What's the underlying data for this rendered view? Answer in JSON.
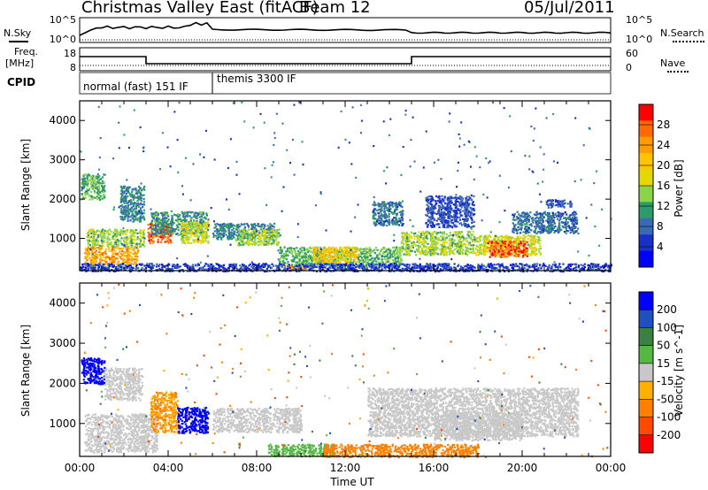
{
  "header": {
    "title": "Christmas Valley East (fitACF)",
    "beam": "Beam 12",
    "date": "05/Jul/2011"
  },
  "side_labels": {
    "nsky": "N.Sky",
    "nsearch": "N.Search",
    "freq": "Freq.",
    "freq_unit": "[MHz]",
    "nave": "Nave",
    "cpid": "CPID"
  },
  "noise_axis": {
    "left_ticks": [
      "10^5",
      "10^0"
    ],
    "right_ticks": [
      "10^5",
      "10^0"
    ]
  },
  "freq_axis": {
    "left_ticks": [
      "18",
      "8"
    ],
    "right_ticks": [
      "60",
      "0"
    ]
  },
  "cpid_segments": [
    {
      "label": "normal (fast) 151 IF",
      "start_hour": 0,
      "end_hour": 6.0
    },
    {
      "label": "themis 3300 IF",
      "start_hour": 6.0,
      "end_hour": 24
    }
  ],
  "colorbars": {
    "power": {
      "label": "Power [dB]",
      "ticks": [
        "28",
        "24",
        "20",
        "16",
        "12",
        "8",
        "4"
      ],
      "colors": [
        "#ff0000",
        "#ff6a00",
        "#ff9c00",
        "#ffc400",
        "#e5d800",
        "#8cd24a",
        "#2f9a6a",
        "#3a6ab4",
        "#1a2fc8",
        "#0000ff"
      ]
    },
    "velocity": {
      "label": "Velocity [m s^-1]",
      "ticks": [
        "200",
        "100",
        "50",
        "15",
        "-15",
        "-50",
        "-100",
        "-200"
      ],
      "colors": [
        "#0000ff",
        "#2050c0",
        "#3a8040",
        "#55b845",
        "#c8c8c8",
        "#ffb000",
        "#ff8000",
        "#ff4a00",
        "#ff0000"
      ]
    }
  },
  "chart_data": [
    {
      "type": "heatmap",
      "title": "Power",
      "ylabel": "Slant Range [km]",
      "xlabel": "",
      "xlim": [
        0,
        24
      ],
      "ylim": [
        180,
        4500
      ],
      "yticks": [
        1000,
        2000,
        3000,
        4000
      ],
      "regions": [
        {
          "t": [
            0.05,
            1.1
          ],
          "r": [
            2000,
            2650
          ],
          "v": 12
        },
        {
          "t": [
            0.3,
            2.9
          ],
          "r": [
            800,
            1250
          ],
          "v": 14
        },
        {
          "t": [
            0.2,
            2.6
          ],
          "r": [
            330,
            800
          ],
          "v": 22
        },
        {
          "t": [
            1.8,
            2.9
          ],
          "r": [
            1450,
            2350
          ],
          "v": 9
        },
        {
          "t": [
            3.05,
            4.1
          ],
          "r": [
            900,
            1400
          ],
          "v": 25
        },
        {
          "t": [
            3.2,
            5.8
          ],
          "r": [
            1100,
            1700
          ],
          "v": 10
        },
        {
          "t": [
            4.5,
            5.8
          ],
          "r": [
            900,
            1450
          ],
          "v": 16
        },
        {
          "t": [
            6.0,
            8.8
          ],
          "r": [
            1000,
            1400
          ],
          "v": 9
        },
        {
          "t": [
            7.0,
            9.0
          ],
          "r": [
            850,
            1250
          ],
          "v": 14
        },
        {
          "t": [
            9.0,
            14.5
          ],
          "r": [
            300,
            800
          ],
          "v": 12
        },
        {
          "t": [
            10.5,
            12.5
          ],
          "r": [
            400,
            800
          ],
          "v": 19
        },
        {
          "t": [
            9.2,
            10.4
          ],
          "r": [
            200,
            330
          ],
          "v": 22
        },
        {
          "t": [
            13.2,
            14.6
          ],
          "r": [
            1350,
            1950
          ],
          "v": 8
        },
        {
          "t": [
            14.5,
            17.8
          ],
          "r": [
            600,
            1200
          ],
          "v": 14
        },
        {
          "t": [
            15.6,
            17.8
          ],
          "r": [
            1300,
            2100
          ],
          "v": 6
        },
        {
          "t": [
            17.8,
            20.8
          ],
          "r": [
            600,
            1100
          ],
          "v": 16
        },
        {
          "t": [
            18.4,
            20.2
          ],
          "r": [
            550,
            950
          ],
          "v": 26
        },
        {
          "t": [
            19.5,
            22.5
          ],
          "r": [
            1150,
            1700
          ],
          "v": 8
        },
        {
          "t": [
            21.0,
            22.2
          ],
          "r": [
            1800,
            2000
          ],
          "v": 6
        },
        {
          "t": [
            0,
            24
          ],
          "r": [
            180,
            380
          ],
          "v": 5
        }
      ]
    },
    {
      "type": "heatmap",
      "title": "Velocity",
      "ylabel": "Slant Range [km]",
      "xlabel": "Time UT",
      "xticks": [
        "00:00",
        "04:00",
        "08:00",
        "12:00",
        "16:00",
        "20:00",
        "00:00"
      ],
      "xlim": [
        0,
        24
      ],
      "ylim": [
        180,
        4500
      ],
      "yticks": [
        1000,
        2000,
        3000,
        4000
      ],
      "regions": [
        {
          "t": [
            0.05,
            1.1
          ],
          "r": [
            2000,
            2650
          ],
          "v": 200
        },
        {
          "t": [
            1.1,
            2.8
          ],
          "r": [
            1600,
            2400
          ],
          "v": 0
        },
        {
          "t": [
            0.2,
            3.5
          ],
          "r": [
            300,
            1250
          ],
          "v": 0
        },
        {
          "t": [
            3.2,
            4.4
          ],
          "r": [
            800,
            1800
          ],
          "v": -30
        },
        {
          "t": [
            4.4,
            5.8
          ],
          "r": [
            780,
            1420
          ],
          "v": 220
        },
        {
          "t": [
            6.0,
            10.0
          ],
          "r": [
            800,
            1400
          ],
          "v": 0
        },
        {
          "t": [
            8.5,
            11.5
          ],
          "r": [
            200,
            500
          ],
          "v": 25
        },
        {
          "t": [
            11.0,
            18.0
          ],
          "r": [
            180,
            500
          ],
          "v": -40
        },
        {
          "t": [
            13.0,
            22.5
          ],
          "r": [
            700,
            1900
          ],
          "v": 0
        },
        {
          "t": [
            16.0,
            20.0
          ],
          "r": [
            600,
            1300
          ],
          "v": 5
        }
      ]
    }
  ]
}
